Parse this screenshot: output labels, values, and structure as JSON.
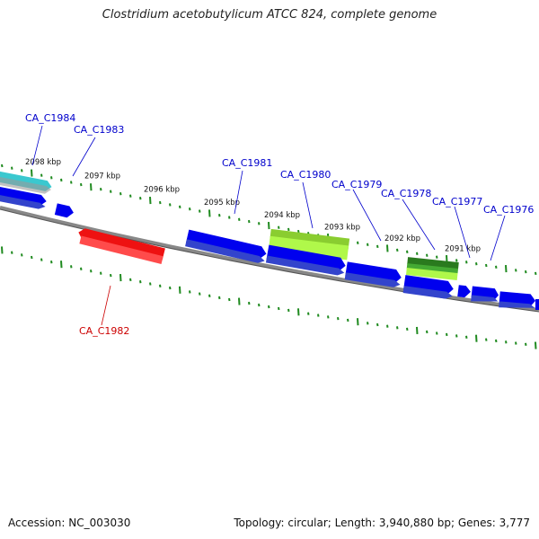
{
  "title": "Clostridium acetobutylicum ATCC 824, complete genome",
  "footer": {
    "accession": "Accession: NC_003030",
    "summary": "Topology: circular; Length: 3,940,880 bp; Genes: 3,777"
  },
  "colors": {
    "backbone": "#888888",
    "tick": "#1f8a1f",
    "forward_gene": "#0000ee",
    "reverse_gene": "#ee1111",
    "rna_dark": "#2a7a1e",
    "rna_light": "#a8f048",
    "teal": "#30c0c8"
  },
  "scale_labels": [
    "2098 kbp",
    "2097 kbp",
    "2096 kbp",
    "2095 kbp",
    "2094 kbp",
    "2093 kbp",
    "2092 kbp",
    "2091 kbp"
  ],
  "genes": [
    {
      "id": "CA_C1984",
      "strand": "forward",
      "color": "teal"
    },
    {
      "id": "CA_C1983",
      "strand": "forward",
      "color": "forward_gene"
    },
    {
      "id": "CA_C1982",
      "strand": "reverse",
      "color": "reverse_gene"
    },
    {
      "id": "CA_C1981",
      "strand": "forward",
      "color": "forward_gene"
    },
    {
      "id": "CA_C1980",
      "strand": "forward",
      "color": "rna_light"
    },
    {
      "id": "CA_C1979",
      "strand": "forward",
      "color": "forward_gene"
    },
    {
      "id": "CA_C1978",
      "strand": "forward",
      "color": "rna_dark"
    },
    {
      "id": "CA_C1977",
      "strand": "forward",
      "color": "forward_gene"
    },
    {
      "id": "CA_C1976",
      "strand": "forward",
      "color": "forward_gene"
    }
  ]
}
